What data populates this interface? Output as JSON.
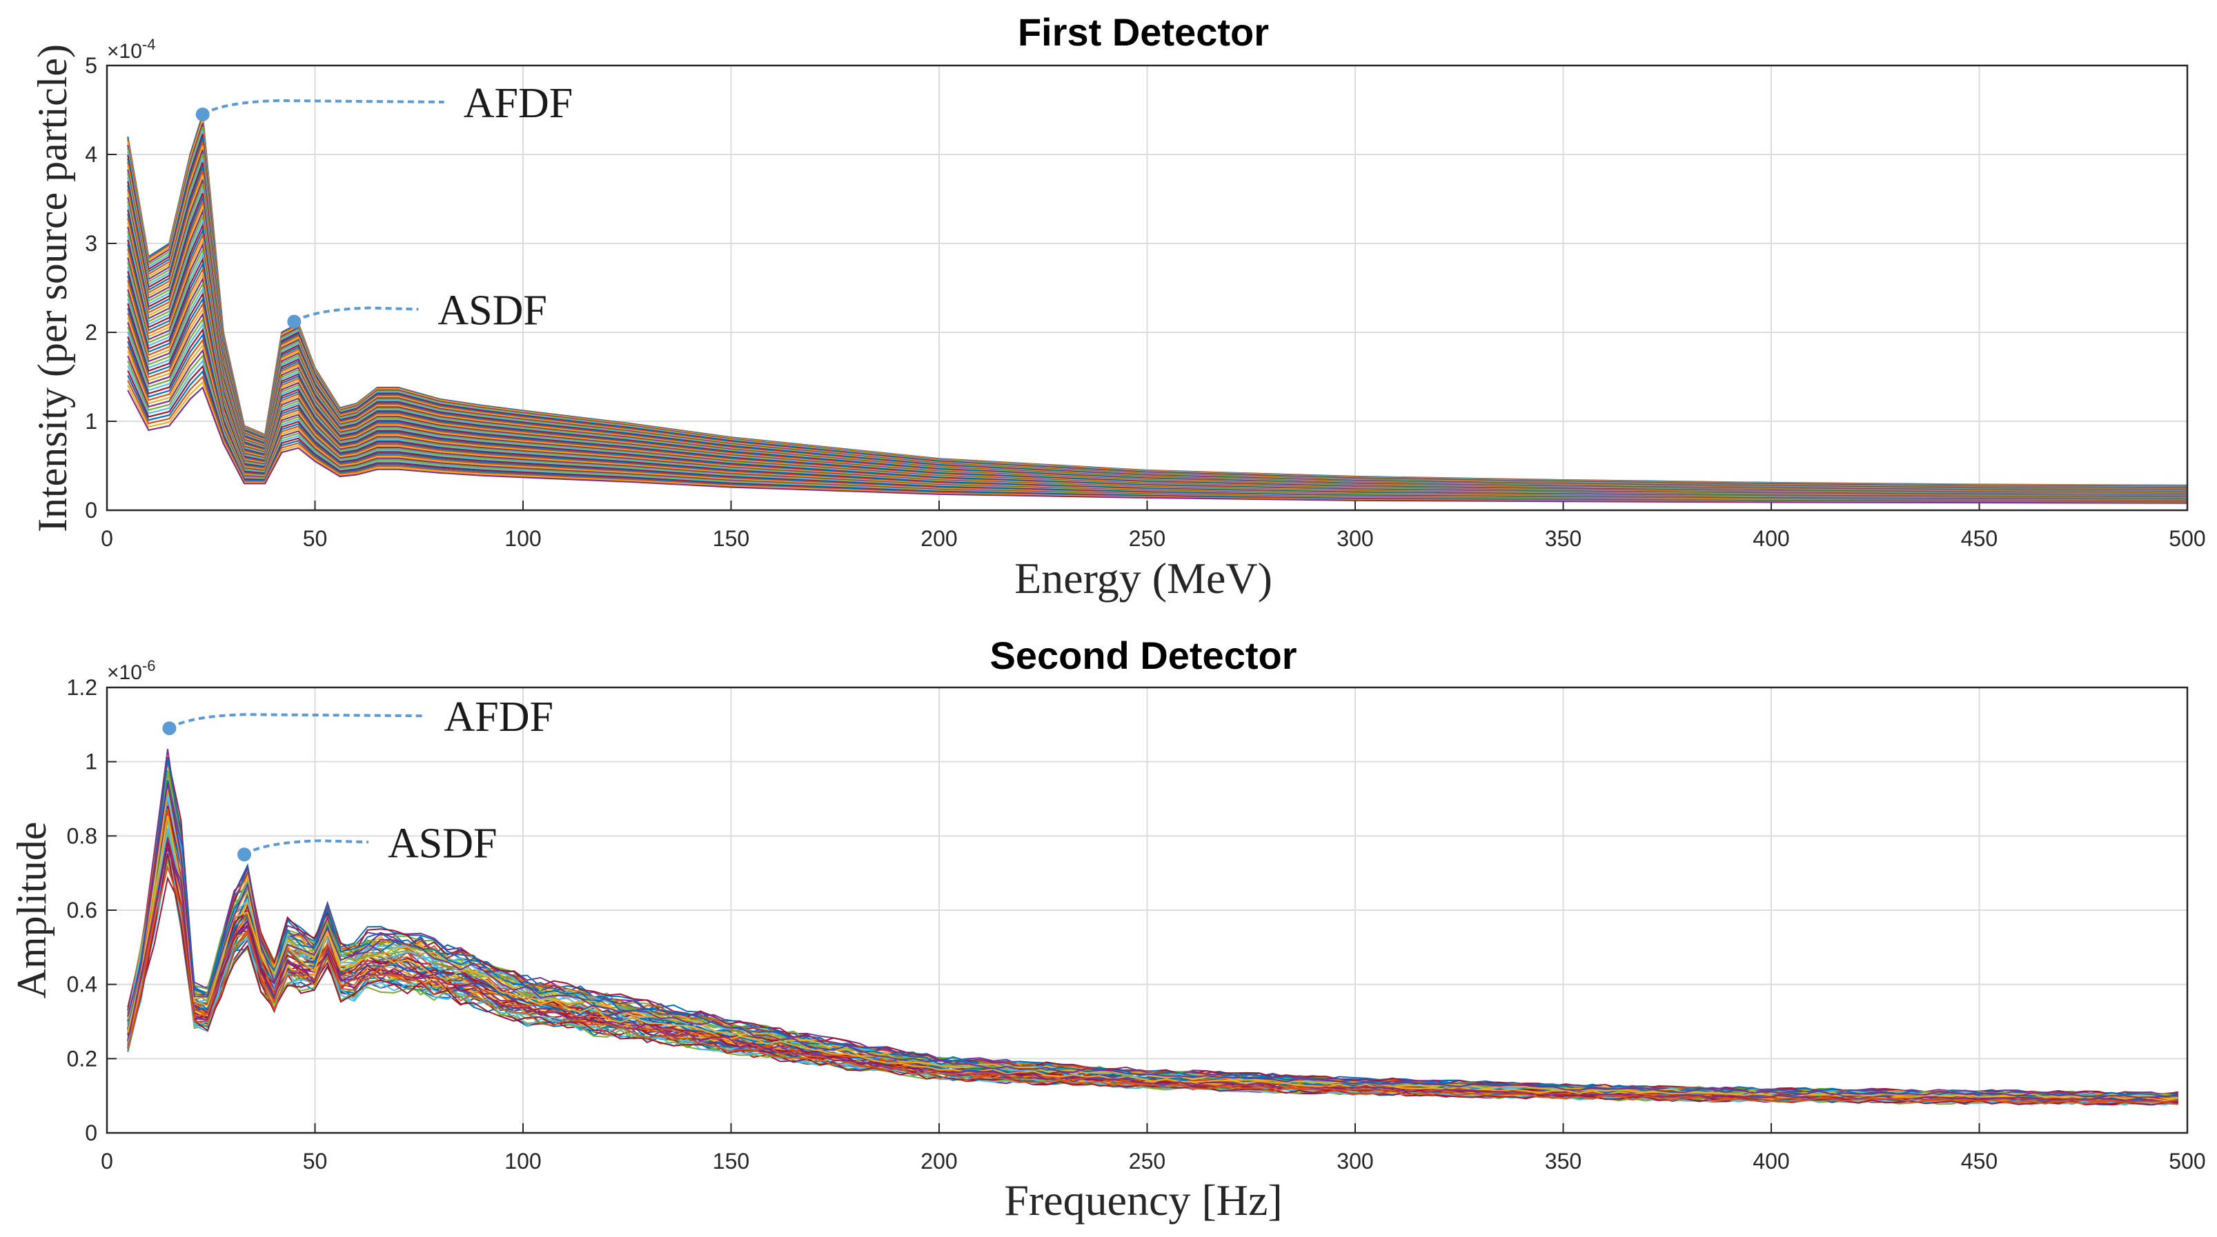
{
  "chart_data": [
    {
      "type": "line",
      "title": "First Detector",
      "xlabel": "Energy (MeV)",
      "ylabel": "Intensity (per source particle)",
      "y_exponent": "×10^-4",
      "xlim": [
        0,
        500
      ],
      "ylim": [
        0,
        5
      ],
      "y_scale": 0.0001,
      "grid": true,
      "x_ticks": [
        "0",
        "50",
        "100",
        "150",
        "200",
        "250",
        "300",
        "350",
        "400",
        "450",
        "500"
      ],
      "y_ticks": [
        "0",
        "1",
        "2",
        "3",
        "4",
        "5"
      ],
      "series_count": 60,
      "x": [
        5,
        10,
        15,
        20,
        23,
        28,
        33,
        38,
        42,
        46,
        50,
        56,
        60,
        65,
        70,
        80,
        90,
        100,
        125,
        150,
        175,
        200,
        250,
        300,
        350,
        400,
        450,
        500
      ],
      "envelope_max": [
        4.2,
        2.85,
        3.0,
        4.0,
        4.45,
        2.0,
        0.95,
        0.85,
        2.0,
        2.1,
        1.6,
        1.15,
        1.2,
        1.38,
        1.38,
        1.25,
        1.18,
        1.12,
        0.98,
        0.82,
        0.7,
        0.58,
        0.45,
        0.38,
        0.34,
        0.31,
        0.29,
        0.28
      ],
      "envelope_min": [
        1.35,
        0.9,
        0.95,
        1.25,
        1.38,
        0.75,
        0.3,
        0.3,
        0.65,
        0.7,
        0.55,
        0.38,
        0.4,
        0.46,
        0.46,
        0.42,
        0.39,
        0.37,
        0.32,
        0.26,
        0.22,
        0.18,
        0.14,
        0.11,
        0.1,
        0.09,
        0.085,
        0.08
      ],
      "annotations": [
        {
          "text": "AFDF",
          "x": 23,
          "y": 4.45
        },
        {
          "text": "ASDF",
          "x": 45,
          "y": 2.12
        }
      ]
    },
    {
      "type": "line",
      "title": "Second Detector",
      "xlabel": "Frequency [Hz]",
      "ylabel": "Amplitude",
      "y_exponent": "×10^-6",
      "xlim": [
        0,
        500
      ],
      "ylim": [
        0,
        1.2
      ],
      "y_scale": 1e-06,
      "grid": true,
      "x_ticks": [
        "0",
        "50",
        "100",
        "150",
        "200",
        "250",
        "300",
        "350",
        "400",
        "450",
        "500"
      ],
      "y_ticks": [
        "0",
        "0.2",
        "0.4",
        "0.6",
        "0.8",
        "1",
        "1.2"
      ],
      "series_count": 60,
      "x_step": 3.2,
      "mean_profile": [
        [
          5,
          0.32
        ],
        [
          10,
          0.6
        ],
        [
          14,
          1.0
        ],
        [
          17,
          0.95
        ],
        [
          20,
          0.38
        ],
        [
          23,
          0.3
        ],
        [
          27,
          0.45
        ],
        [
          30,
          0.55
        ],
        [
          33,
          0.68
        ],
        [
          36,
          0.5
        ],
        [
          40,
          0.4
        ],
        [
          45,
          0.55
        ],
        [
          48,
          0.42
        ],
        [
          53,
          0.55
        ],
        [
          57,
          0.42
        ],
        [
          62,
          0.48
        ],
        [
          70,
          0.48
        ],
        [
          80,
          0.45
        ],
        [
          90,
          0.42
        ],
        [
          100,
          0.37
        ],
        [
          125,
          0.32
        ],
        [
          150,
          0.27
        ],
        [
          175,
          0.22
        ],
        [
          200,
          0.18
        ],
        [
          250,
          0.15
        ],
        [
          300,
          0.13
        ],
        [
          350,
          0.115
        ],
        [
          400,
          0.105
        ],
        [
          450,
          0.1
        ],
        [
          500,
          0.095
        ]
      ],
      "annotations": [
        {
          "text": "AFDF",
          "x": 15,
          "y": 1.09
        },
        {
          "text": "ASDF",
          "x": 33,
          "y": 0.75
        }
      ]
    }
  ],
  "colors": {
    "series_cycle": [
      "#0072BD",
      "#D95319",
      "#EDB120",
      "#7E2F8E",
      "#77AC30",
      "#4DBEEE",
      "#A2142F"
    ],
    "annotation": "#5B9BD5",
    "grid": "#dcdcdc",
    "axis": "#262626"
  }
}
